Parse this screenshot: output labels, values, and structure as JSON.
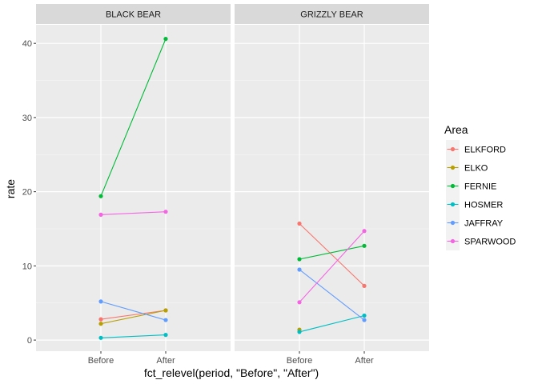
{
  "chart_data": {
    "type": "line",
    "xlabel": "fct_relevel(period, \"Before\", \"After\")",
    "ylabel": "rate",
    "categories": [
      "Before",
      "After"
    ],
    "ylim": [
      -1.5,
      42.5
    ],
    "yticks": [
      0,
      10,
      20,
      30,
      40
    ],
    "grid": true,
    "legend": {
      "title": "Area",
      "placement": "right",
      "entries": [
        {
          "name": "ELKFORD",
          "color": "#F8766D"
        },
        {
          "name": "ELKO",
          "color": "#B79F00"
        },
        {
          "name": "FERNIE",
          "color": "#00BA38"
        },
        {
          "name": "HOSMER",
          "color": "#00BFC4"
        },
        {
          "name": "JAFFRAY",
          "color": "#619CFF"
        },
        {
          "name": "SPARWOOD",
          "color": "#F564E3"
        }
      ]
    },
    "panels": [
      {
        "title": "BLACK BEAR",
        "series": [
          {
            "name": "ELKFORD",
            "values": [
              2.8,
              4.0
            ]
          },
          {
            "name": "ELKO",
            "values": [
              2.2,
              4.0
            ]
          },
          {
            "name": "FERNIE",
            "values": [
              19.4,
              40.6
            ]
          },
          {
            "name": "HOSMER",
            "values": [
              0.3,
              0.7
            ]
          },
          {
            "name": "JAFFRAY",
            "values": [
              5.2,
              2.7
            ]
          },
          {
            "name": "SPARWOOD",
            "values": [
              16.9,
              17.3
            ]
          }
        ]
      },
      {
        "title": "GRIZZLY BEAR",
        "series": [
          {
            "name": "ELKFORD",
            "values": [
              15.7,
              7.3
            ]
          },
          {
            "name": "ELKO",
            "values": [
              1.4,
              null
            ]
          },
          {
            "name": "FERNIE",
            "values": [
              10.9,
              12.7
            ]
          },
          {
            "name": "HOSMER",
            "values": [
              1.1,
              3.3
            ]
          },
          {
            "name": "JAFFRAY",
            "values": [
              9.5,
              2.7
            ]
          },
          {
            "name": "SPARWOOD",
            "values": [
              5.1,
              14.7
            ]
          }
        ]
      }
    ]
  }
}
